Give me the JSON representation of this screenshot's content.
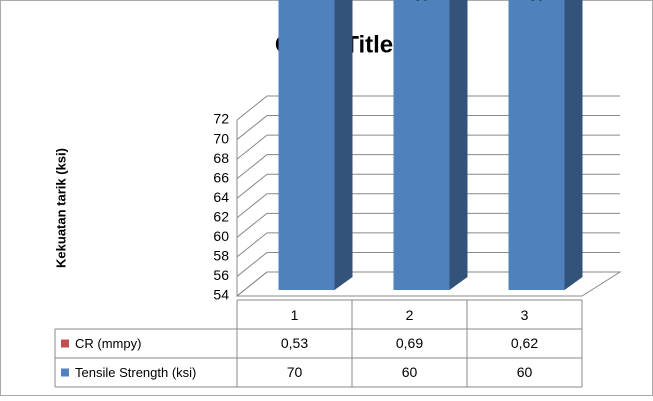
{
  "chart_data": {
    "type": "bar3d-stacked",
    "title": "Chart Title",
    "y_label": "Kekuatan tarik (ksi)",
    "categories": [
      "1",
      "2",
      "3"
    ],
    "series": [
      {
        "name": "Tensile Strength (ksi)",
        "color": "#4f81bd",
        "values": [
          70,
          60,
          60
        ]
      },
      {
        "name": "CR (mmpy)",
        "color": "#c0504d",
        "values": [
          0.53,
          0.69,
          0.62
        ],
        "value_labels": [
          "0,53",
          "0,69",
          "0,62"
        ]
      }
    ],
    "ylim": [
      54,
      72
    ],
    "yticks": [
      54,
      56,
      58,
      60,
      62,
      64,
      66,
      68,
      70,
      72
    ],
    "grid": true
  }
}
